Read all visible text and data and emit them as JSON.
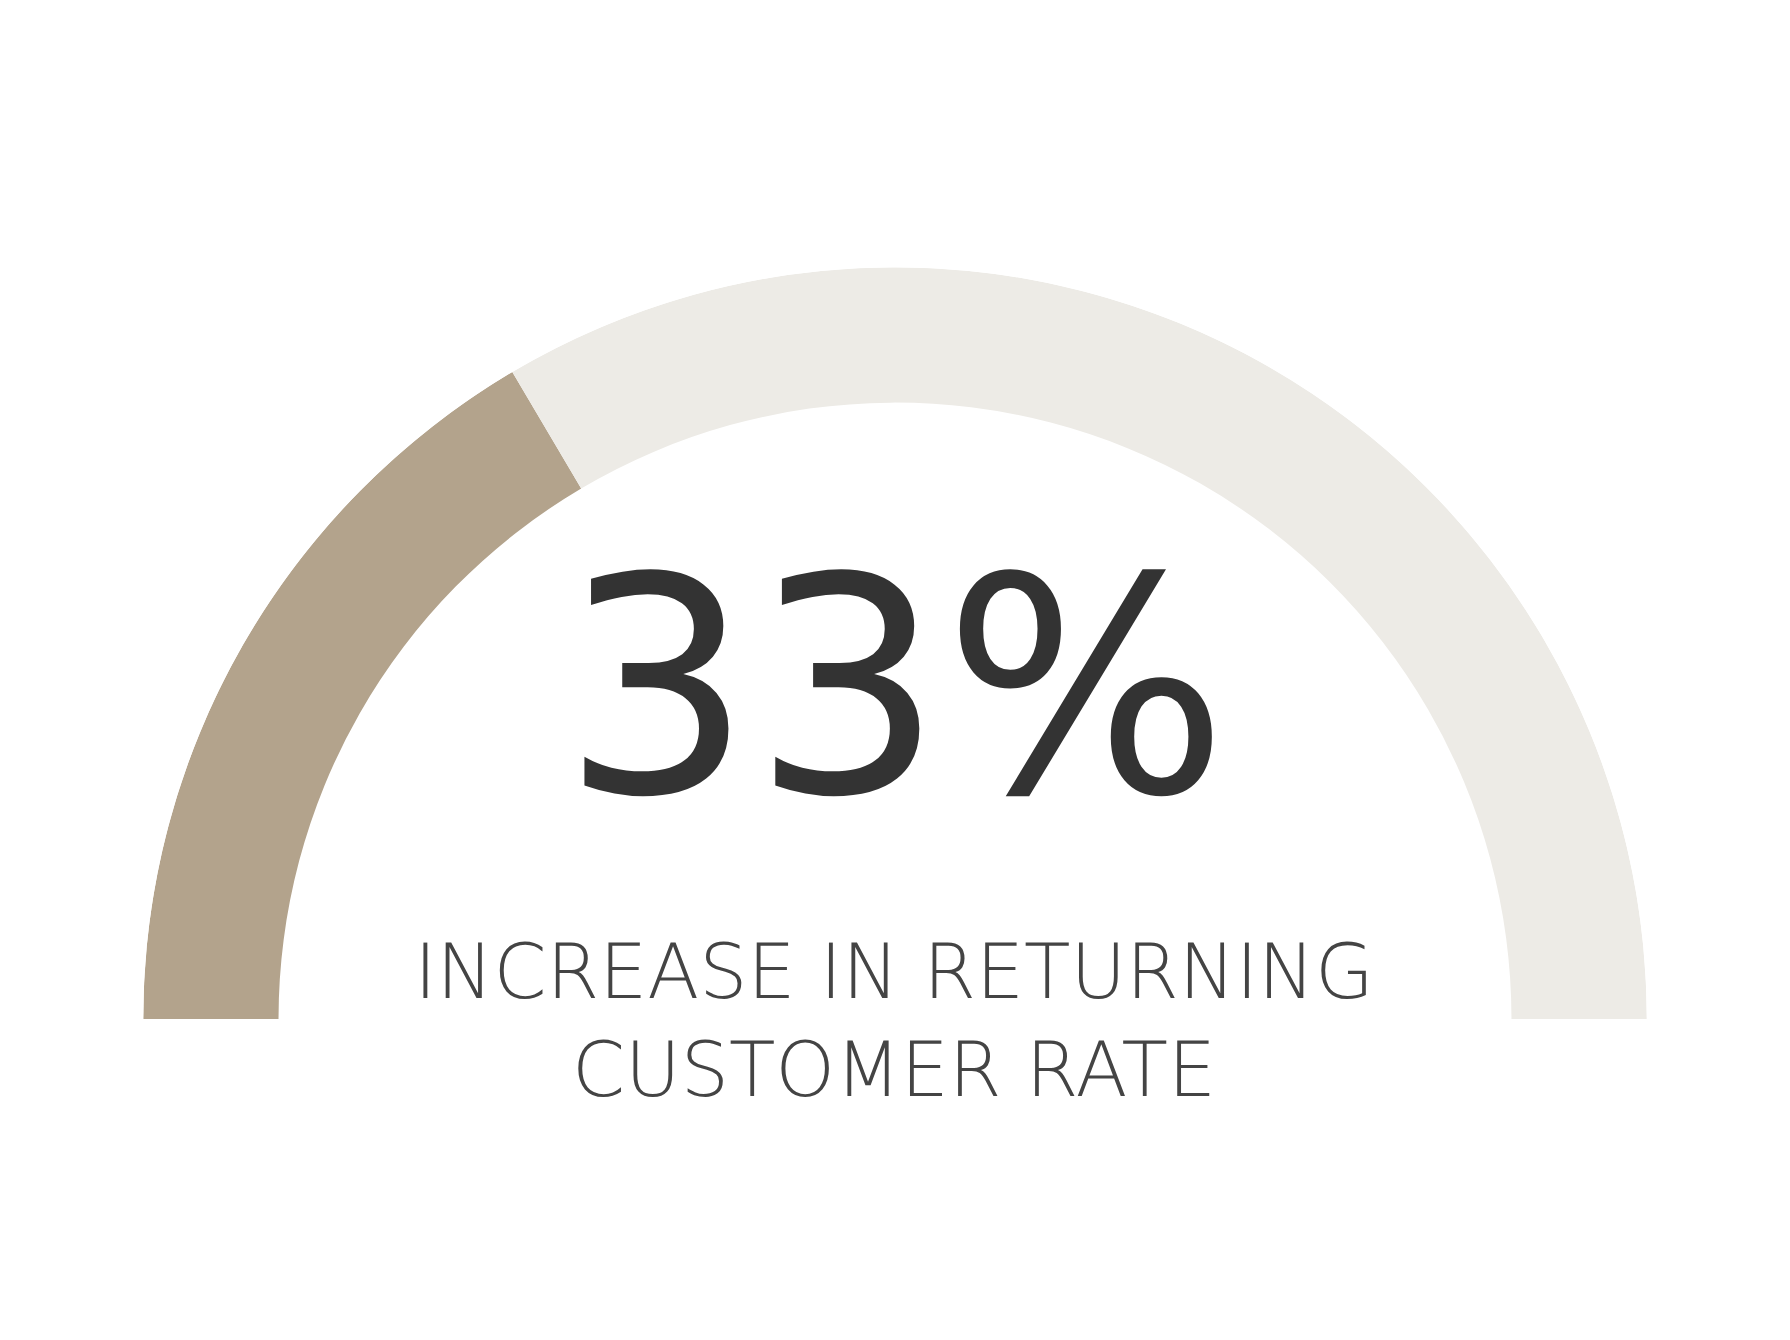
{
  "chart_data": {
    "type": "donut",
    "title": "33%",
    "subtitle": "INCREASE IN RETURNING CUSTOMER RATE",
    "categories": [
      null,
      null
    ],
    "values": [
      33,
      67
    ],
    "colors": [
      "#b3a38c",
      "#edebe6"
    ]
  }
}
